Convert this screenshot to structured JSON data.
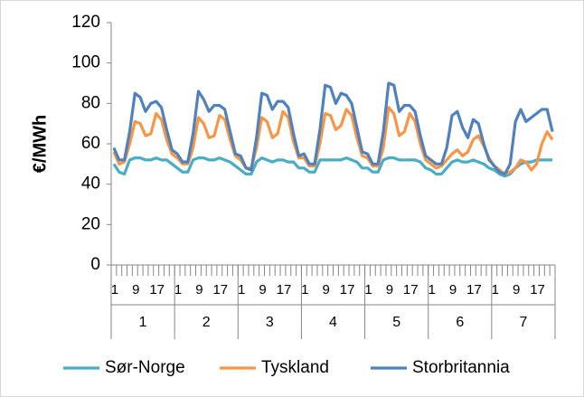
{
  "chart_data": {
    "type": "line",
    "y_axis_label": "€/MWh",
    "ylim": [
      0,
      120
    ],
    "yticks": [
      0,
      20,
      40,
      60,
      80,
      100,
      120
    ],
    "grid": false,
    "legend": "bottom",
    "categories": [
      "1",
      null,
      null,
      null,
      "9",
      null,
      null,
      null,
      "17",
      null,
      null,
      null,
      "1",
      null,
      null,
      null,
      "9",
      null,
      null,
      null,
      "17",
      null,
      null,
      null,
      "1",
      null,
      null,
      null,
      "9",
      null,
      null,
      null,
      "17",
      null,
      null,
      null,
      "1",
      null,
      null,
      null,
      "9",
      null,
      null,
      null,
      "17",
      null,
      null,
      null,
      "1",
      null,
      null,
      null,
      "9",
      null,
      null,
      null,
      "17",
      null,
      null,
      null,
      "1",
      null,
      null,
      null,
      "9",
      null,
      null,
      null,
      "17",
      null,
      null,
      null,
      "1",
      null,
      null,
      null,
      "9",
      null,
      null,
      null,
      "17",
      null,
      null,
      null
    ],
    "groups": [
      "1",
      "2",
      "3",
      "4",
      "5",
      "6",
      "7"
    ],
    "series": [
      {
        "name": "Sør-Norge",
        "color": "#4bacc6",
        "values": [
          50,
          46,
          45,
          52,
          53,
          53,
          52,
          52,
          53,
          52,
          52,
          50,
          48,
          46,
          46,
          52,
          53,
          53,
          52,
          52,
          53,
          52,
          51,
          49,
          47,
          45,
          45,
          51,
          53,
          52,
          51,
          52,
          52,
          51,
          51,
          48,
          48,
          46,
          46,
          52,
          52,
          52,
          52,
          52,
          53,
          52,
          51,
          48,
          48,
          46,
          46,
          52,
          53,
          53,
          52,
          52,
          52,
          52,
          51,
          48,
          47,
          45,
          45,
          48,
          51,
          52,
          51,
          51,
          52,
          51,
          50,
          48,
          47,
          45,
          44,
          45,
          48,
          50,
          51,
          51,
          52,
          52,
          52,
          52
        ]
      },
      {
        "name": "Tyskland",
        "color": "#f79646",
        "values": [
          56,
          50,
          51,
          60,
          71,
          70,
          64,
          65,
          75,
          72,
          62,
          55,
          53,
          50,
          50,
          58,
          73,
          70,
          63,
          64,
          74,
          72,
          62,
          54,
          52,
          48,
          48,
          58,
          73,
          71,
          63,
          65,
          76,
          73,
          61,
          53,
          53,
          49,
          49,
          60,
          75,
          74,
          67,
          69,
          77,
          74,
          63,
          54,
          53,
          49,
          49,
          58,
          78,
          75,
          64,
          66,
          75,
          71,
          60,
          52,
          50,
          48,
          49,
          52,
          55,
          57,
          54,
          56,
          62,
          64,
          59,
          53,
          49,
          47,
          45,
          46,
          48,
          52,
          51,
          47,
          50,
          60,
          66,
          62
        ]
      },
      {
        "name": "Storbritannia",
        "color": "#4f81bd",
        "values": [
          58,
          52,
          52,
          66,
          85,
          83,
          76,
          80,
          81,
          78,
          67,
          57,
          55,
          51,
          51,
          65,
          86,
          82,
          76,
          79,
          79,
          77,
          66,
          55,
          54,
          48,
          47,
          63,
          85,
          84,
          77,
          81,
          81,
          78,
          65,
          54,
          55,
          50,
          50,
          67,
          89,
          88,
          80,
          85,
          84,
          80,
          68,
          56,
          55,
          50,
          50,
          66,
          90,
          89,
          76,
          79,
          79,
          76,
          64,
          54,
          52,
          50,
          50,
          58,
          74,
          76,
          68,
          63,
          72,
          70,
          60,
          52,
          49,
          46,
          45,
          50,
          71,
          77,
          71,
          73,
          75,
          77,
          77,
          66
        ]
      }
    ]
  }
}
